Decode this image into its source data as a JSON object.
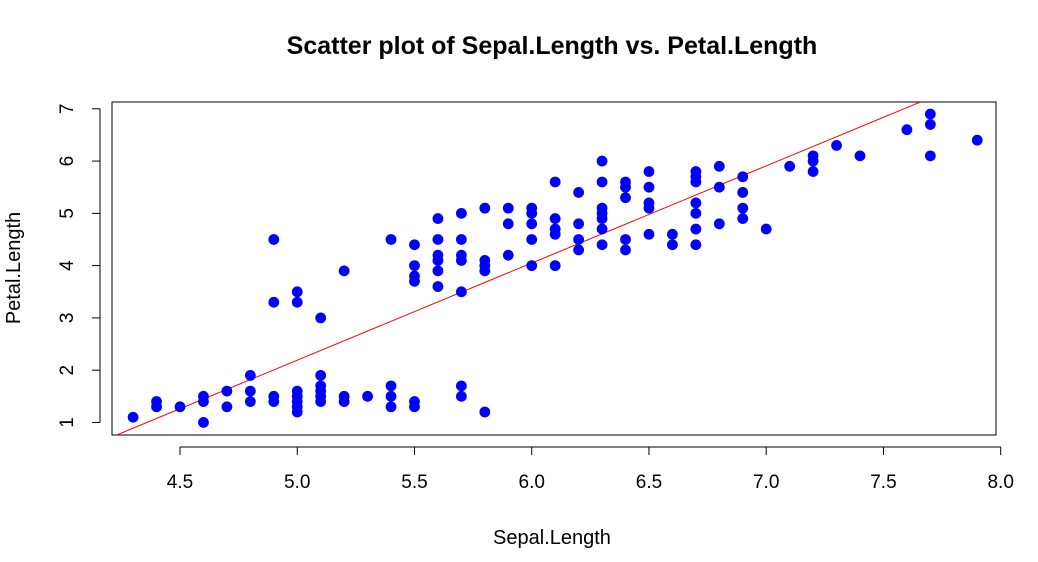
{
  "chart_data": {
    "type": "scatter",
    "title": "Scatter plot of Sepal.Length vs. Petal.Length",
    "xlabel": "Sepal.Length",
    "ylabel": "Petal.Length",
    "xlim": [
      4.21,
      7.98
    ],
    "ylim": [
      0.76,
      7.13
    ],
    "x_ticks": [
      "4.5",
      "5.0",
      "5.5",
      "6.0",
      "6.5",
      "7.0",
      "7.5",
      "8.0"
    ],
    "y_ticks": [
      "1",
      "2",
      "3",
      "4",
      "5",
      "6",
      "7"
    ],
    "grid": false,
    "legend": "none",
    "point_color": "#0000FF",
    "line_color": "#FF0000",
    "regression_line": {
      "intercept": -7.101,
      "slope": 1.8584
    },
    "points": [
      [
        4.3,
        1.1
      ],
      [
        4.4,
        1.4
      ],
      [
        4.4,
        1.3
      ],
      [
        4.5,
        1.3
      ],
      [
        4.6,
        1.0
      ],
      [
        4.6,
        1.5
      ],
      [
        4.6,
        1.4
      ],
      [
        4.7,
        1.6
      ],
      [
        4.7,
        1.3
      ],
      [
        4.8,
        1.9
      ],
      [
        4.8,
        1.6
      ],
      [
        4.8,
        1.4
      ],
      [
        4.9,
        4.5
      ],
      [
        4.9,
        3.3
      ],
      [
        4.9,
        1.5
      ],
      [
        4.9,
        1.4
      ],
      [
        5.0,
        3.5
      ],
      [
        5.0,
        3.3
      ],
      [
        5.0,
        1.6
      ],
      [
        5.0,
        1.5
      ],
      [
        5.0,
        1.4
      ],
      [
        5.0,
        1.3
      ],
      [
        5.0,
        1.2
      ],
      [
        5.1,
        3.0
      ],
      [
        5.1,
        1.9
      ],
      [
        5.1,
        1.7
      ],
      [
        5.1,
        1.6
      ],
      [
        5.1,
        1.5
      ],
      [
        5.1,
        1.4
      ],
      [
        5.2,
        3.9
      ],
      [
        5.2,
        1.5
      ],
      [
        5.2,
        1.4
      ],
      [
        5.3,
        1.5
      ],
      [
        5.4,
        4.5
      ],
      [
        5.4,
        1.7
      ],
      [
        5.4,
        1.5
      ],
      [
        5.4,
        1.3
      ],
      [
        5.5,
        4.4
      ],
      [
        5.5,
        4.0
      ],
      [
        5.5,
        3.8
      ],
      [
        5.5,
        3.7
      ],
      [
        5.5,
        1.4
      ],
      [
        5.5,
        1.3
      ],
      [
        5.6,
        4.9
      ],
      [
        5.6,
        4.5
      ],
      [
        5.6,
        4.2
      ],
      [
        5.6,
        4.1
      ],
      [
        5.6,
        3.9
      ],
      [
        5.6,
        3.6
      ],
      [
        5.7,
        5.0
      ],
      [
        5.7,
        4.5
      ],
      [
        5.7,
        4.2
      ],
      [
        5.7,
        4.1
      ],
      [
        5.7,
        3.5
      ],
      [
        5.7,
        1.7
      ],
      [
        5.7,
        1.5
      ],
      [
        5.8,
        5.1
      ],
      [
        5.8,
        4.1
      ],
      [
        5.8,
        4.0
      ],
      [
        5.8,
        3.9
      ],
      [
        5.8,
        1.2
      ],
      [
        5.9,
        5.1
      ],
      [
        5.9,
        4.8
      ],
      [
        5.9,
        4.2
      ],
      [
        6.0,
        5.1
      ],
      [
        6.0,
        5.0
      ],
      [
        6.0,
        4.8
      ],
      [
        6.0,
        4.5
      ],
      [
        6.0,
        4.0
      ],
      [
        6.1,
        5.6
      ],
      [
        6.1,
        4.9
      ],
      [
        6.1,
        4.7
      ],
      [
        6.1,
        4.6
      ],
      [
        6.1,
        4.0
      ],
      [
        6.2,
        5.4
      ],
      [
        6.2,
        4.8
      ],
      [
        6.2,
        4.5
      ],
      [
        6.2,
        4.3
      ],
      [
        6.3,
        6.0
      ],
      [
        6.3,
        5.6
      ],
      [
        6.3,
        5.1
      ],
      [
        6.3,
        5.0
      ],
      [
        6.3,
        4.9
      ],
      [
        6.3,
        4.7
      ],
      [
        6.3,
        4.4
      ],
      [
        6.4,
        5.6
      ],
      [
        6.4,
        5.5
      ],
      [
        6.4,
        5.3
      ],
      [
        6.4,
        4.5
      ],
      [
        6.4,
        4.3
      ],
      [
        6.5,
        5.8
      ],
      [
        6.5,
        5.5
      ],
      [
        6.5,
        5.2
      ],
      [
        6.5,
        5.1
      ],
      [
        6.5,
        4.6
      ],
      [
        6.6,
        4.6
      ],
      [
        6.6,
        4.4
      ],
      [
        6.7,
        5.8
      ],
      [
        6.7,
        5.7
      ],
      [
        6.7,
        5.6
      ],
      [
        6.7,
        5.2
      ],
      [
        6.7,
        5.0
      ],
      [
        6.7,
        4.7
      ],
      [
        6.7,
        4.4
      ],
      [
        6.8,
        5.9
      ],
      [
        6.8,
        5.5
      ],
      [
        6.8,
        4.8
      ],
      [
        6.9,
        5.7
      ],
      [
        6.9,
        5.4
      ],
      [
        6.9,
        5.1
      ],
      [
        6.9,
        4.9
      ],
      [
        7.0,
        4.7
      ],
      [
        7.1,
        5.9
      ],
      [
        7.2,
        6.1
      ],
      [
        7.2,
        6.0
      ],
      [
        7.2,
        5.8
      ],
      [
        7.3,
        6.3
      ],
      [
        7.4,
        6.1
      ],
      [
        7.6,
        6.6
      ],
      [
        7.7,
        6.9
      ],
      [
        7.7,
        6.7
      ],
      [
        7.7,
        6.1
      ],
      [
        7.9,
        6.4
      ]
    ]
  }
}
